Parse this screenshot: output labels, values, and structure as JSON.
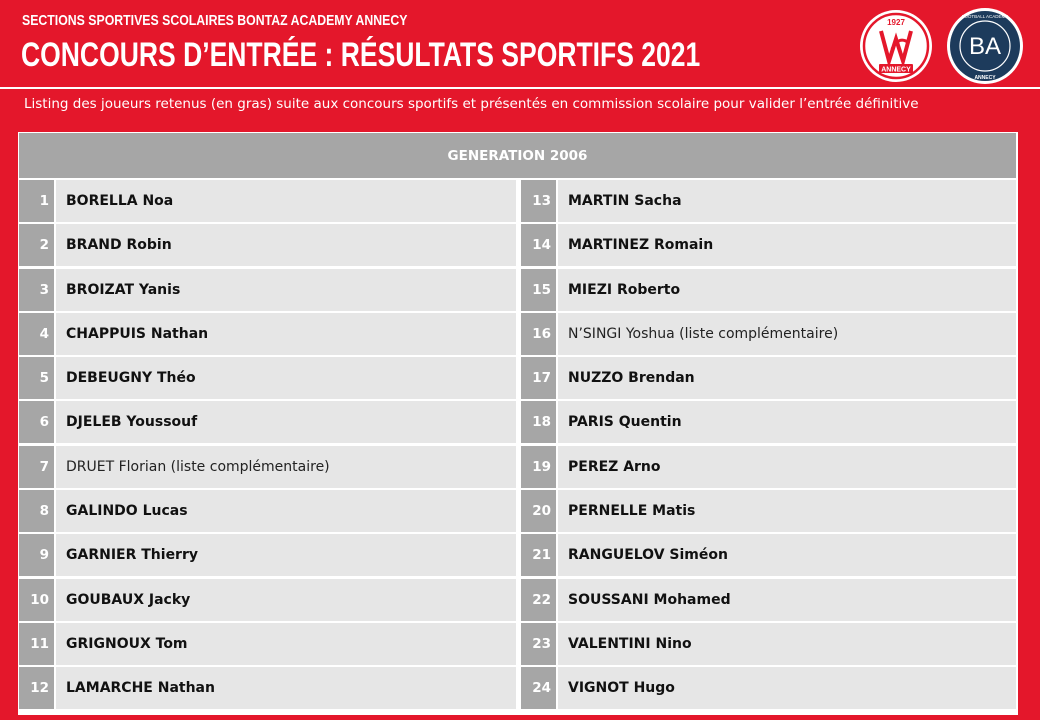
{
  "header": {
    "supertitle": "SECTIONS SPORTIVES SCOLAIRES BONTAZ ACADEMY ANNECY",
    "title": "CONCOURS D’ENTRÉE : RÉSULTATS SPORTIFS 2021",
    "subtitle": "Listing des joueurs retenus (en gras) suite aux concours sportifs et présentés en commission scolaire pour valider l’entrée définitive"
  },
  "logos": {
    "club": {
      "year": "1927",
      "text": "ANNECY",
      "initials": "FCA"
    },
    "academy": {
      "initials": "BA",
      "text_top": "FOOTBALL ACADEMY",
      "text_bottom": "ANNECY"
    }
  },
  "colors": {
    "accent": "#e4172b",
    "header_grey": "#a6a6a6",
    "cell": "#e6e6e6",
    "navy": "#1d3b5c"
  },
  "table": {
    "generation": "GENERATION 2006",
    "left": [
      {
        "num": "1",
        "name": "BORELLA Noa",
        "selected": true
      },
      {
        "num": "2",
        "name": "BRAND Robin",
        "selected": true
      },
      {
        "num": "3",
        "name": "BROIZAT Yanis",
        "selected": true
      },
      {
        "num": "4",
        "name": "CHAPPUIS Nathan",
        "selected": true
      },
      {
        "num": "5",
        "name": "DEBEUGNY Théo",
        "selected": true
      },
      {
        "num": "6",
        "name": "DJELEB Youssouf",
        "selected": true
      },
      {
        "num": "7",
        "name": "DRUET Florian (liste complémentaire)",
        "selected": false
      },
      {
        "num": "8",
        "name": "GALINDO Lucas",
        "selected": true
      },
      {
        "num": "9",
        "name": "GARNIER Thierry",
        "selected": true
      },
      {
        "num": "10",
        "name": "GOUBAUX Jacky",
        "selected": true
      },
      {
        "num": "11",
        "name": "GRIGNOUX Tom",
        "selected": true
      },
      {
        "num": "12",
        "name": "LAMARCHE Nathan",
        "selected": true
      }
    ],
    "right": [
      {
        "num": "13",
        "name": "MARTIN Sacha",
        "selected": true
      },
      {
        "num": "14",
        "name": "MARTINEZ Romain",
        "selected": true
      },
      {
        "num": "15",
        "name": "MIEZI Roberto",
        "selected": true
      },
      {
        "num": "16",
        "name": "N’SINGI Yoshua (liste complémentaire)",
        "selected": false
      },
      {
        "num": "17",
        "name": "NUZZO Brendan",
        "selected": true
      },
      {
        "num": "18",
        "name": "PARIS Quentin",
        "selected": true
      },
      {
        "num": "19",
        "name": "PEREZ Arno",
        "selected": true
      },
      {
        "num": "20",
        "name": "PERNELLE Matis",
        "selected": true
      },
      {
        "num": "21",
        "name": "RANGUELOV Siméon",
        "selected": true
      },
      {
        "num": "22",
        "name": "SOUSSANI Mohamed",
        "selected": true
      },
      {
        "num": "23",
        "name": "VALENTINI Nino",
        "selected": true
      },
      {
        "num": "24",
        "name": "VIGNOT Hugo",
        "selected": true
      }
    ]
  }
}
